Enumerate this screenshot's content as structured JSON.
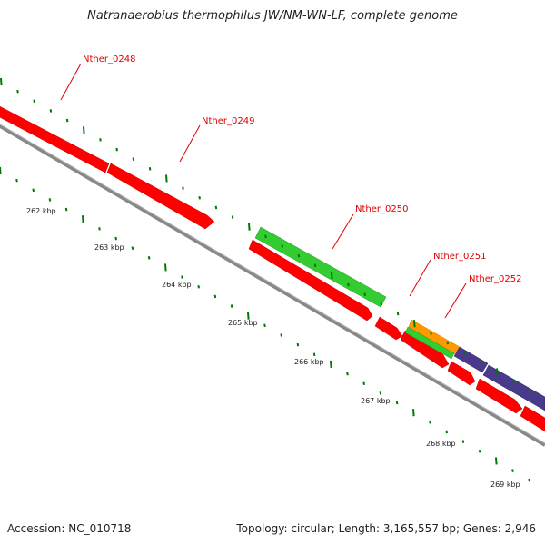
{
  "title": "Natranaerobius thermophilus JW/NM-WN-LF, complete genome",
  "footer": {
    "accession": "Accession: NC_010718",
    "topology": "Topology: circular; Length: 3,165,557 bp; Genes: 2,946"
  },
  "colors": {
    "background": "#ffffff",
    "backbone": "#888888",
    "gene_red": "#ff0000",
    "gene_green": "#33cc33",
    "gene_orange": "#ff9900",
    "gene_purple": "#4a3a8c",
    "tick_green": "#007700",
    "label_red": "#e00000"
  },
  "gene_labels": [
    "Nther_0248",
    "Nther_0249",
    "Nther_0250",
    "Nther_0251",
    "Nther_0252"
  ],
  "kbp_labels": [
    "262 kbp",
    "263 kbp",
    "264 kbp",
    "265 kbp",
    "266 kbp",
    "267 kbp",
    "268 kbp",
    "269 kbp"
  ]
}
